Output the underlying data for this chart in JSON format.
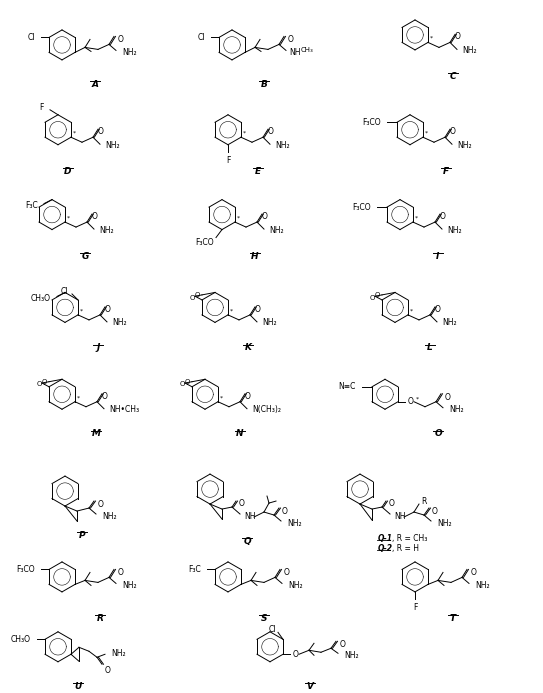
{
  "figsize": [
    5.43,
    6.93
  ],
  "dpi": 100,
  "bg": "#ffffff",
  "compounds": [
    "A",
    "B",
    "C",
    "D",
    "E",
    "F",
    "G",
    "H",
    "I",
    "J",
    "K",
    "L",
    "M",
    "N",
    "O",
    "P",
    "Q",
    "R",
    "S",
    "T",
    "U",
    "V"
  ]
}
